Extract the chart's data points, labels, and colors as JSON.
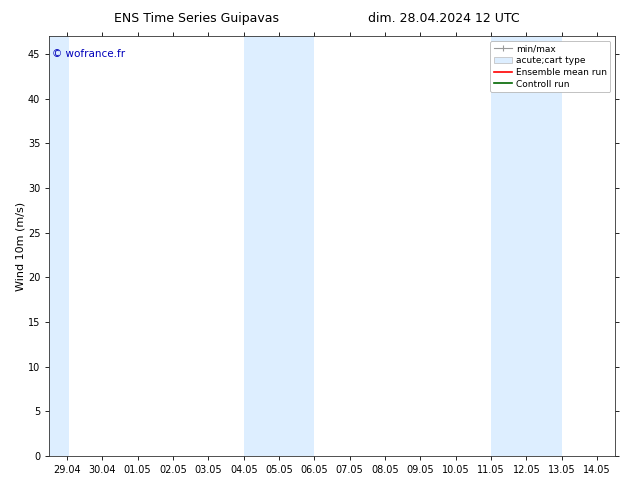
{
  "title_left": "ENS Time Series Guipavas",
  "title_right": "dim. 28.04.2024 12 UTC",
  "ylabel": "Wind 10m (m/s)",
  "watermark": "© wofrance.fr",
  "xlim_left": 0,
  "xlim_right": 15,
  "ylim_bottom": 0,
  "ylim_top": 47,
  "yticks": [
    0,
    5,
    10,
    15,
    20,
    25,
    30,
    35,
    40,
    45
  ],
  "xtick_labels": [
    "29.04",
    "30.04",
    "01.05",
    "02.05",
    "03.05",
    "04.05",
    "05.05",
    "06.05",
    "07.05",
    "08.05",
    "09.05",
    "10.05",
    "11.05",
    "12.05",
    "13.05",
    "14.05"
  ],
  "xtick_positions": [
    0,
    1,
    2,
    3,
    4,
    5,
    6,
    7,
    8,
    9,
    10,
    11,
    12,
    13,
    14,
    15
  ],
  "shaded_regions": [
    {
      "xmin": -0.5,
      "xmax": 0.07
    },
    {
      "xmin": 5,
      "xmax": 7
    },
    {
      "xmin": 12,
      "xmax": 14
    }
  ],
  "shade_color": "#ddeeff",
  "background_color": "#ffffff",
  "legend_items": [
    {
      "label": "min/max",
      "color": "#999999",
      "type": "errorbar"
    },
    {
      "label": "acute;cart type",
      "color": "#bbbbbb",
      "type": "box"
    },
    {
      "label": "Ensemble mean run",
      "color": "#ff0000",
      "type": "line"
    },
    {
      "label": "Controll run",
      "color": "#006600",
      "type": "line"
    }
  ],
  "title_fontsize": 9,
  "tick_fontsize": 7,
  "ylabel_fontsize": 8,
  "legend_fontsize": 6.5,
  "watermark_color": "#0000bb",
  "watermark_fontsize": 7.5
}
